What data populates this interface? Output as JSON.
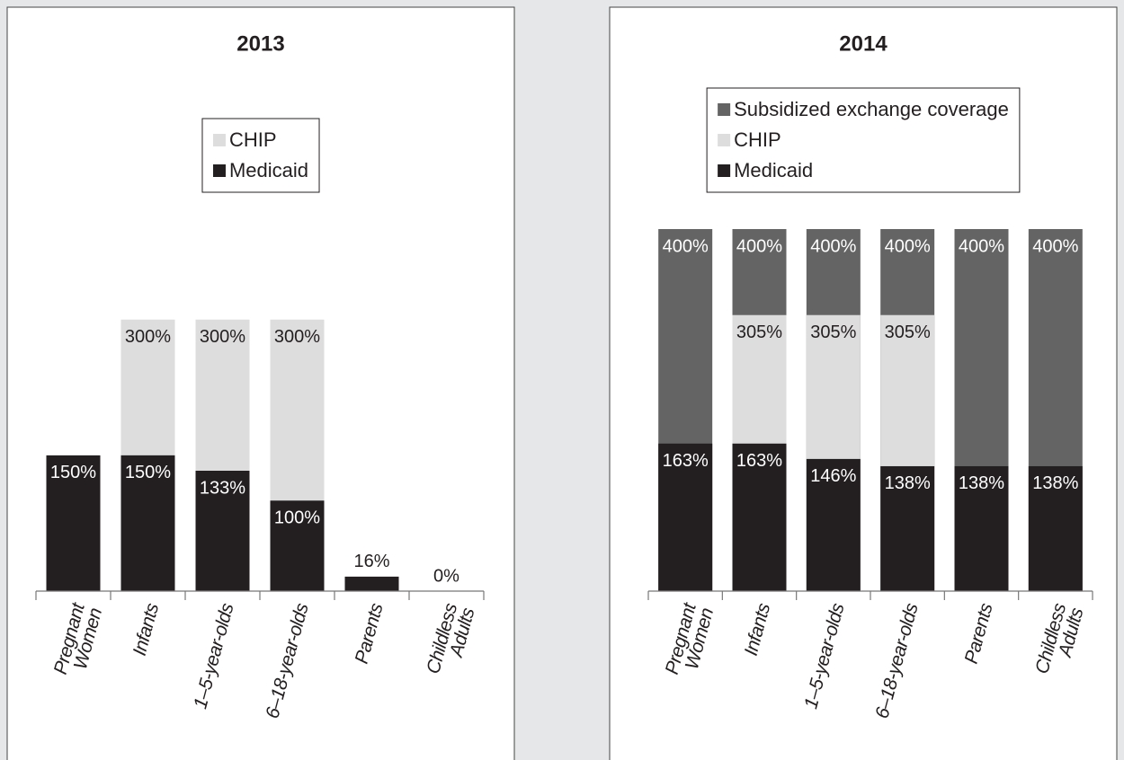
{
  "chart_data": [
    {
      "type": "bar",
      "title": "2013",
      "categories": [
        "Pregnant Women",
        "Infants",
        "1–5-year-olds",
        "6–18-year-olds",
        "Parents",
        "Childless Adults"
      ],
      "series": [
        {
          "name": "Medicaid",
          "color": "#231f20",
          "values": [
            150,
            150,
            133,
            100,
            16,
            0
          ],
          "value_labels": [
            "150%",
            "150%",
            "133%",
            "100%",
            "16%",
            "0%"
          ]
        },
        {
          "name": "CHIP",
          "color": "#dddddd",
          "values": [
            null,
            300,
            300,
            300,
            null,
            null
          ],
          "value_labels": [
            null,
            "300%",
            "300%",
            "300%",
            null,
            null
          ]
        }
      ],
      "ylim": [
        0,
        400
      ],
      "legend": "top"
    },
    {
      "type": "bar",
      "title": "2014",
      "categories": [
        "Pregnant Women",
        "Infants",
        "1–5-year-olds",
        "6–18-year-olds",
        "Parents",
        "Childless Adults"
      ],
      "series": [
        {
          "name": "Medicaid",
          "color": "#231f20",
          "values": [
            163,
            163,
            146,
            138,
            138,
            138
          ],
          "value_labels": [
            "163%",
            "163%",
            "146%",
            "138%",
            "138%",
            "138%"
          ]
        },
        {
          "name": "CHIP",
          "color": "#dddddd",
          "values": [
            null,
            305,
            305,
            305,
            null,
            null
          ],
          "value_labels": [
            null,
            "305%",
            "305%",
            "305%",
            null,
            null
          ]
        },
        {
          "name": "Subsidized exchange coverage",
          "color": "#646464",
          "values": [
            400,
            400,
            400,
            400,
            400,
            400
          ],
          "value_labels": [
            "400%",
            "400%",
            "400%",
            "400%",
            "400%",
            "400%"
          ]
        }
      ],
      "ylim": [
        0,
        400
      ],
      "legend": "top"
    }
  ]
}
